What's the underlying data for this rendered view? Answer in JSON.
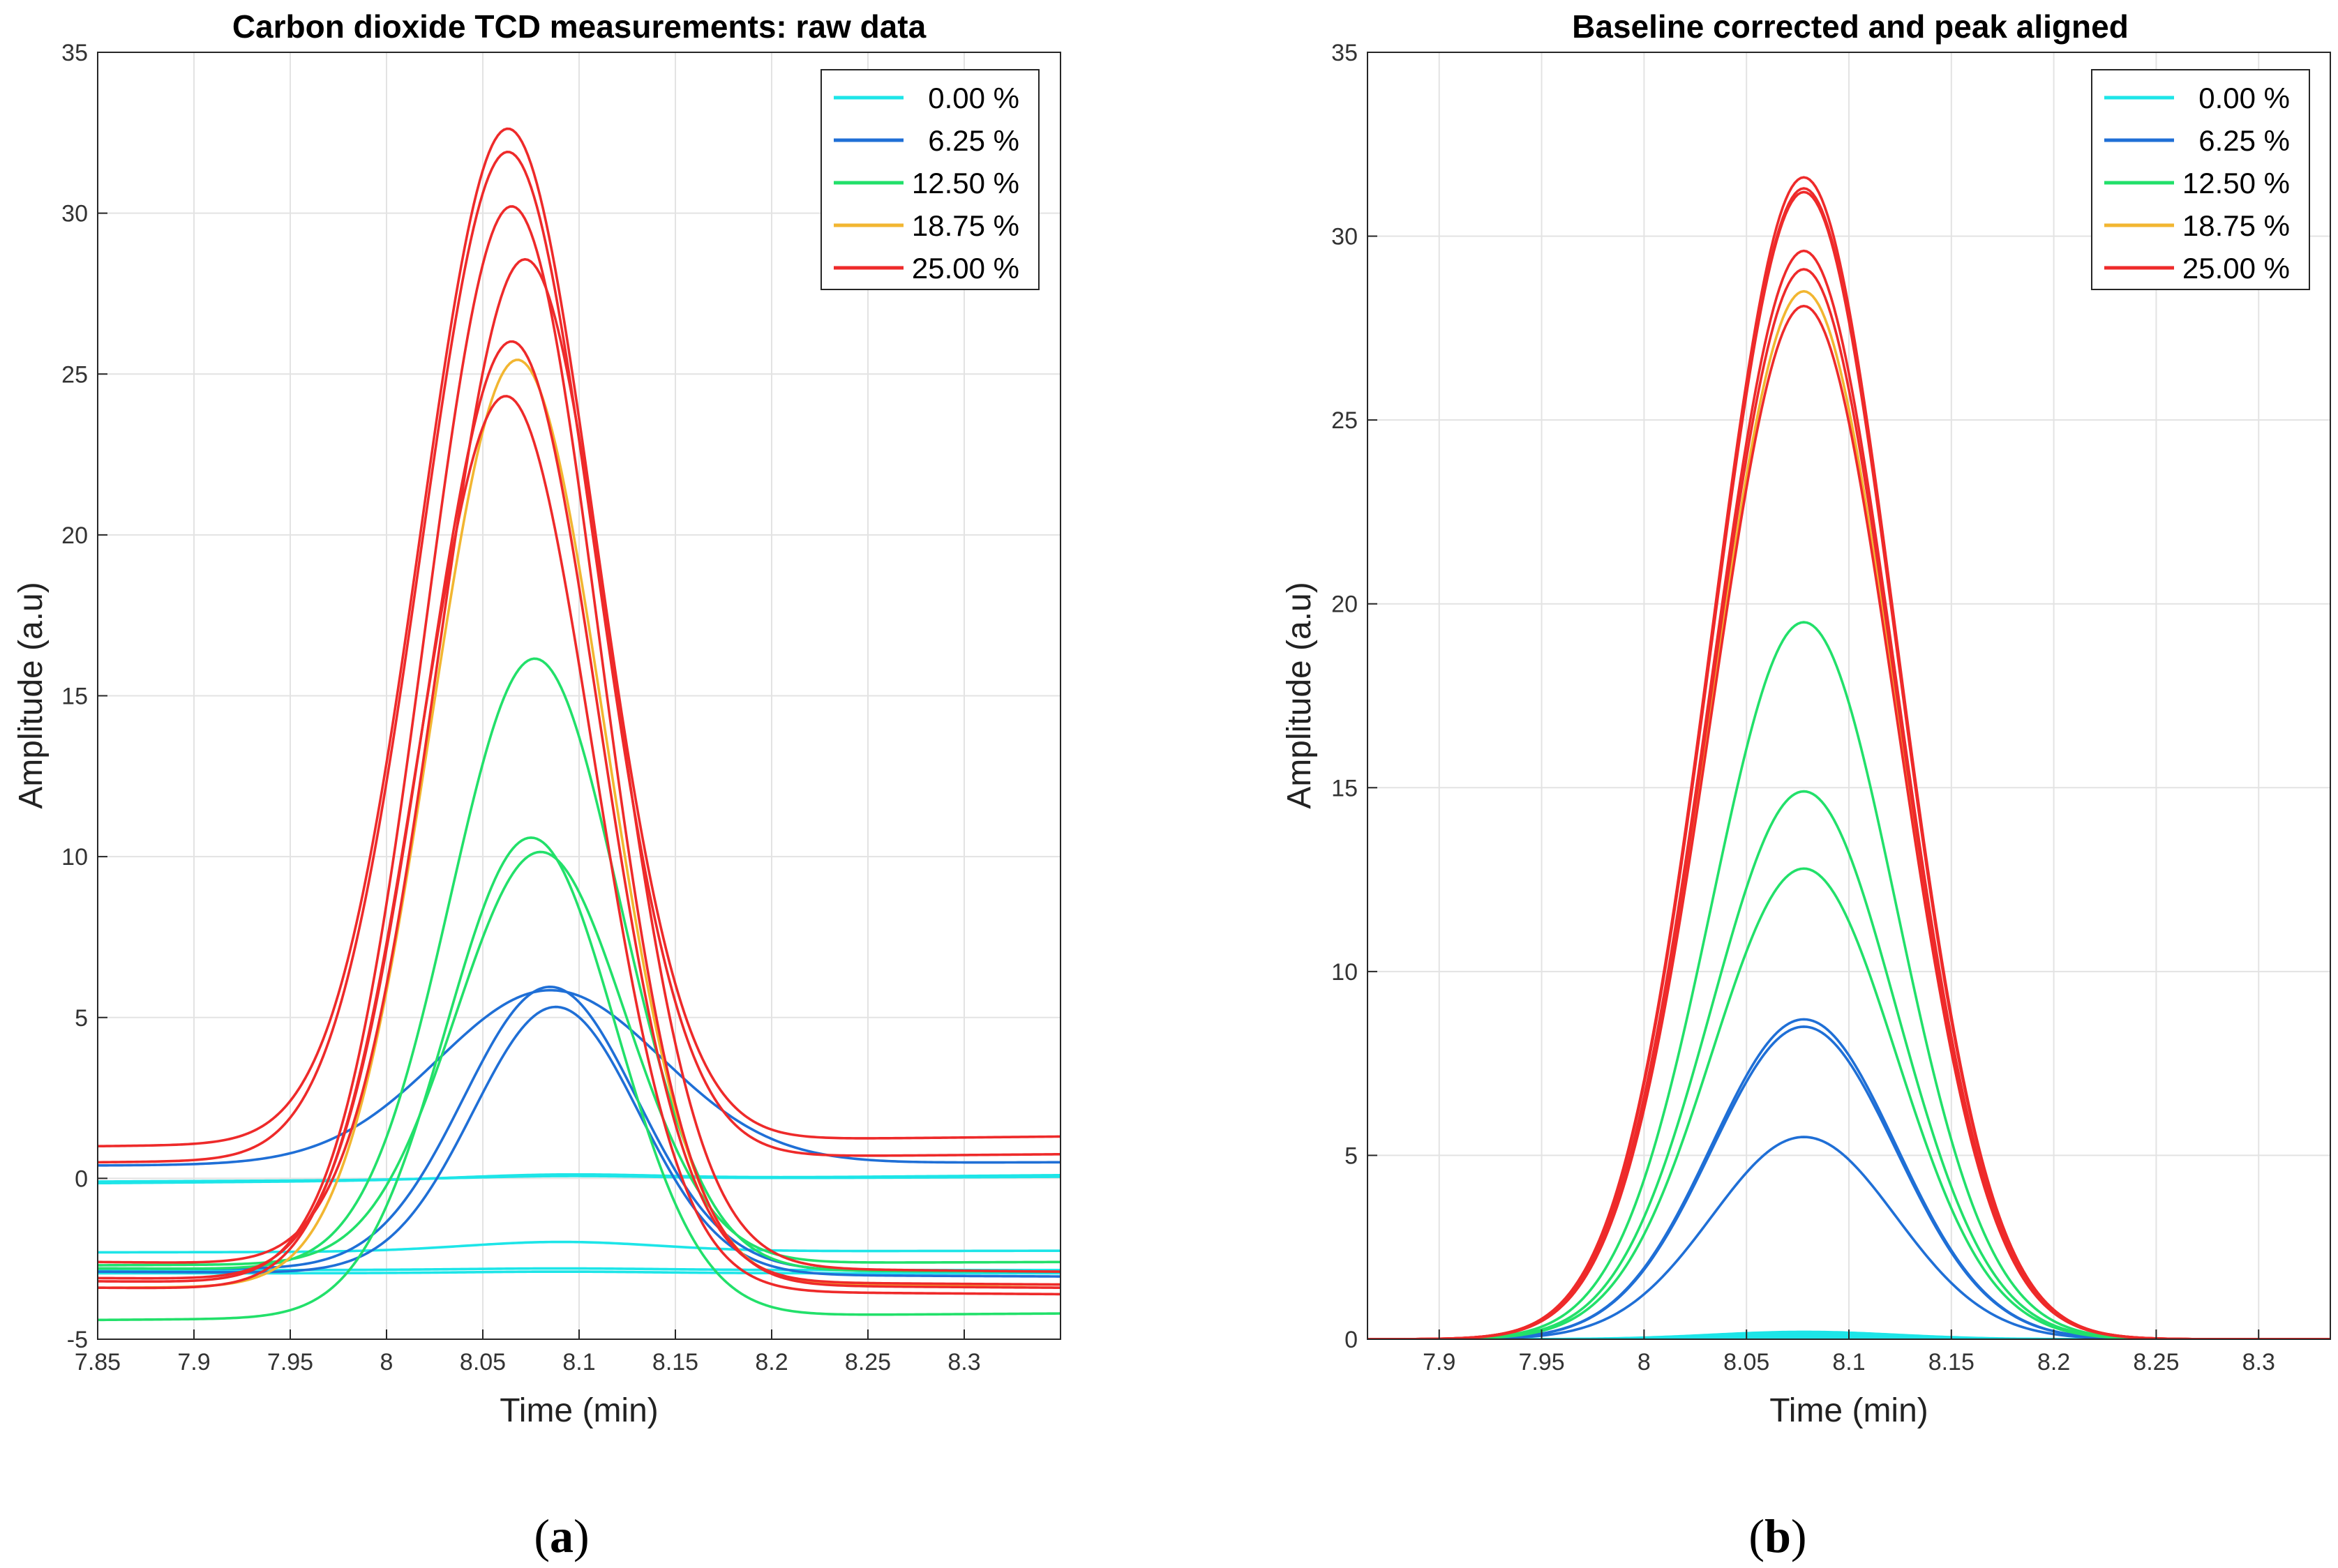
{
  "chart_data": [
    {
      "type": "line",
      "panel": "a",
      "caption": "(a)",
      "caption_letter": "a",
      "title": "Carbon dioxide TCD measurements: raw data",
      "xlabel": "Time (min)",
      "ylabel": "Amplitude (a.u)",
      "xlim": [
        7.85,
        8.35
      ],
      "ylim": [
        -5,
        35
      ],
      "xticks": [
        7.85,
        7.9,
        7.95,
        8,
        8.05,
        8.1,
        8.15,
        8.2,
        8.25,
        8.3
      ],
      "xtick_labels": [
        "7.85",
        "7.9",
        "7.95",
        "8",
        "8.05",
        "8.1",
        "8.15",
        "8.2",
        "8.25",
        "8.3"
      ],
      "yticks": [
        -5,
        0,
        5,
        10,
        15,
        20,
        25,
        30,
        35
      ],
      "ytick_labels": [
        "-5",
        "0",
        "5",
        "10",
        "15",
        "20",
        "25",
        "30",
        "35"
      ],
      "grid": true,
      "legend_position": "top-right",
      "legend": [
        {
          "label": "0.00 %",
          "color": "#1de5e8"
        },
        {
          "label": "6.25 %",
          "color": "#1f6fd6"
        },
        {
          "label": "12.50 %",
          "color": "#22e06a"
        },
        {
          "label": "18.75 %",
          "color": "#f2b631"
        },
        {
          "label": "25.00 %",
          "color": "#ee2a2a"
        }
      ],
      "series": [
        {
          "name": "0.00 %",
          "color": "#1de5e8",
          "peak_time": 8.09,
          "peak_height": 0.1,
          "sigma": 0.05,
          "baseline_start": -0.1,
          "baseline_end": 0.05
        },
        {
          "name": "0.00 %",
          "color": "#1de5e8",
          "peak_time": 8.09,
          "peak_height": 0.15,
          "sigma": 0.05,
          "baseline_start": -0.15,
          "baseline_end": 0.1
        },
        {
          "name": "0.00 %",
          "color": "#1de5e8",
          "peak_time": 8.09,
          "peak_height": 0.3,
          "sigma": 0.05,
          "baseline_start": -2.3,
          "baseline_end": -2.25
        },
        {
          "name": "0.00 %",
          "color": "#1de5e8",
          "peak_time": 8.09,
          "peak_height": 0.05,
          "sigma": 0.05,
          "baseline_start": -2.85,
          "baseline_end": -2.85
        },
        {
          "name": "0.00 %",
          "color": "#1de5e8",
          "peak_time": 8.09,
          "peak_height": 0.05,
          "sigma": 0.05,
          "baseline_start": -2.95,
          "baseline_end": -2.95
        },
        {
          "name": "6.25 %",
          "color": "#1f6fd6",
          "peak_time": 8.085,
          "peak_height": 5.4,
          "sigma": 0.058,
          "baseline_start": 0.4,
          "baseline_end": 0.5
        },
        {
          "name": "6.25 %",
          "color": "#1f6fd6",
          "peak_time": 8.085,
          "peak_height": 8.8,
          "sigma": 0.045,
          "baseline_start": -2.8,
          "baseline_end": -2.9
        },
        {
          "name": "6.25 %",
          "color": "#1f6fd6",
          "peak_time": 8.088,
          "peak_height": 8.3,
          "sigma": 0.043,
          "baseline_start": -2.9,
          "baseline_end": -3.05
        },
        {
          "name": "12.50 %",
          "color": "#22e06a",
          "peak_time": 8.077,
          "peak_height": 19.0,
          "sigma": 0.044,
          "baseline_start": -2.8,
          "baseline_end": -2.9
        },
        {
          "name": "12.50 %",
          "color": "#22e06a",
          "peak_time": 8.075,
          "peak_height": 14.9,
          "sigma": 0.044,
          "baseline_start": -4.4,
          "baseline_end": -4.2
        },
        {
          "name": "12.50 %",
          "color": "#22e06a",
          "peak_time": 8.08,
          "peak_height": 12.8,
          "sigma": 0.044,
          "baseline_start": -2.7,
          "baseline_end": -2.6
        },
        {
          "name": "18.75 %",
          "color": "#f2b631",
          "peak_time": 8.068,
          "peak_height": 28.8,
          "sigma": 0.045,
          "baseline_start": -3.4,
          "baseline_end": -3.3
        },
        {
          "name": "25.00 %",
          "color": "#ee2a2a",
          "peak_time": 8.063,
          "peak_height": 31.5,
          "sigma": 0.045,
          "baseline_start": 1.0,
          "baseline_end": 1.3
        },
        {
          "name": "25.00 %",
          "color": "#ee2a2a",
          "peak_time": 8.063,
          "peak_height": 31.3,
          "sigma": 0.045,
          "baseline_start": 0.5,
          "baseline_end": 0.75
        },
        {
          "name": "25.00 %",
          "color": "#ee2a2a",
          "peak_time": 8.065,
          "peak_height": 33.5,
          "sigma": 0.045,
          "baseline_start": -3.2,
          "baseline_end": -3.4
        },
        {
          "name": "25.00 %",
          "color": "#ee2a2a",
          "peak_time": 8.072,
          "peak_height": 31.3,
          "sigma": 0.045,
          "baseline_start": -2.6,
          "baseline_end": -2.9
        },
        {
          "name": "25.00 %",
          "color": "#ee2a2a",
          "peak_time": 8.065,
          "peak_height": 29.2,
          "sigma": 0.045,
          "baseline_start": -3.1,
          "baseline_end": -3.3
        },
        {
          "name": "25.00 %",
          "color": "#ee2a2a",
          "peak_time": 8.062,
          "peak_height": 27.8,
          "sigma": 0.045,
          "baseline_start": -3.4,
          "baseline_end": -3.6
        }
      ]
    },
    {
      "type": "line",
      "panel": "b",
      "caption": "(b)",
      "caption_letter": "b",
      "title": "Baseline corrected and peak aligned",
      "xlabel": "Time (min)",
      "ylabel": "Amplitude (a.u)",
      "xlim": [
        7.865,
        8.335
      ],
      "ylim": [
        0,
        35
      ],
      "xticks": [
        7.9,
        7.95,
        8,
        8.05,
        8.1,
        8.15,
        8.2,
        8.25,
        8.3
      ],
      "xtick_labels": [
        "7.9",
        "7.95",
        "8",
        "8.05",
        "8.1",
        "8.15",
        "8.2",
        "8.25",
        "8.3"
      ],
      "yticks": [
        0,
        5,
        10,
        15,
        20,
        25,
        30,
        35
      ],
      "ytick_labels": [
        "0",
        "5",
        "10",
        "15",
        "20",
        "25",
        "30",
        "35"
      ],
      "grid": true,
      "legend_position": "top-right",
      "legend": [
        {
          "label": "0.00 %",
          "color": "#1de5e8"
        },
        {
          "label": "6.25 %",
          "color": "#1f6fd6"
        },
        {
          "label": "12.50 %",
          "color": "#22e06a"
        },
        {
          "label": "18.75 %",
          "color": "#f2b631"
        },
        {
          "label": "25.00 %",
          "color": "#ee2a2a"
        }
      ],
      "series": [
        {
          "name": "0.00 %",
          "color": "#1de5e8",
          "peak_time": 8.078,
          "peak_height": 0.15,
          "sigma": 0.045,
          "baseline_start": 0,
          "baseline_end": 0
        },
        {
          "name": "0.00 %",
          "color": "#1de5e8",
          "peak_time": 8.078,
          "peak_height": 0.1,
          "sigma": 0.045,
          "baseline_start": 0,
          "baseline_end": 0
        },
        {
          "name": "0.00 %",
          "color": "#1de5e8",
          "peak_time": 8.078,
          "peak_height": 0.2,
          "sigma": 0.045,
          "baseline_start": 0,
          "baseline_end": 0
        },
        {
          "name": "0.00 %",
          "color": "#1de5e8",
          "peak_time": 8.078,
          "peak_height": 0.05,
          "sigma": 0.045,
          "baseline_start": 0,
          "baseline_end": 0
        },
        {
          "name": "0.00 %",
          "color": "#1de5e8",
          "peak_time": 8.078,
          "peak_height": 0.12,
          "sigma": 0.045,
          "baseline_start": 0,
          "baseline_end": 0
        },
        {
          "name": "6.25 %",
          "color": "#1f6fd6",
          "peak_time": 8.078,
          "peak_height": 5.5,
          "sigma": 0.045,
          "baseline_start": 0,
          "baseline_end": 0
        },
        {
          "name": "6.25 %",
          "color": "#1f6fd6",
          "peak_time": 8.078,
          "peak_height": 8.5,
          "sigma": 0.045,
          "baseline_start": 0,
          "baseline_end": 0
        },
        {
          "name": "6.25 %",
          "color": "#1f6fd6",
          "peak_time": 8.078,
          "peak_height": 8.7,
          "sigma": 0.045,
          "baseline_start": 0,
          "baseline_end": 0
        },
        {
          "name": "12.50 %",
          "color": "#22e06a",
          "peak_time": 8.078,
          "peak_height": 12.8,
          "sigma": 0.045,
          "baseline_start": 0,
          "baseline_end": 0
        },
        {
          "name": "12.50 %",
          "color": "#22e06a",
          "peak_time": 8.078,
          "peak_height": 14.9,
          "sigma": 0.045,
          "baseline_start": 0,
          "baseline_end": 0
        },
        {
          "name": "12.50 %",
          "color": "#22e06a",
          "peak_time": 8.078,
          "peak_height": 19.5,
          "sigma": 0.045,
          "baseline_start": 0,
          "baseline_end": 0
        },
        {
          "name": "18.75 %",
          "color": "#f2b631",
          "peak_time": 8.078,
          "peak_height": 28.5,
          "sigma": 0.045,
          "baseline_start": 0,
          "baseline_end": 0
        },
        {
          "name": "25.00 %",
          "color": "#ee2a2a",
          "peak_time": 8.078,
          "peak_height": 31.6,
          "sigma": 0.045,
          "baseline_start": 0,
          "baseline_end": 0
        },
        {
          "name": "25.00 %",
          "color": "#ee2a2a",
          "peak_time": 8.078,
          "peak_height": 31.3,
          "sigma": 0.045,
          "baseline_start": 0,
          "baseline_end": 0
        },
        {
          "name": "25.00 %",
          "color": "#ee2a2a",
          "peak_time": 8.078,
          "peak_height": 31.2,
          "sigma": 0.045,
          "baseline_start": 0,
          "baseline_end": 0
        },
        {
          "name": "25.00 %",
          "color": "#ee2a2a",
          "peak_time": 8.078,
          "peak_height": 29.6,
          "sigma": 0.045,
          "baseline_start": 0,
          "baseline_end": 0
        },
        {
          "name": "25.00 %",
          "color": "#ee2a2a",
          "peak_time": 8.078,
          "peak_height": 29.1,
          "sigma": 0.045,
          "baseline_start": 0,
          "baseline_end": 0
        },
        {
          "name": "25.00 %",
          "color": "#ee2a2a",
          "peak_time": 8.078,
          "peak_height": 28.1,
          "sigma": 0.045,
          "baseline_start": 0,
          "baseline_end": 0
        }
      ]
    }
  ]
}
